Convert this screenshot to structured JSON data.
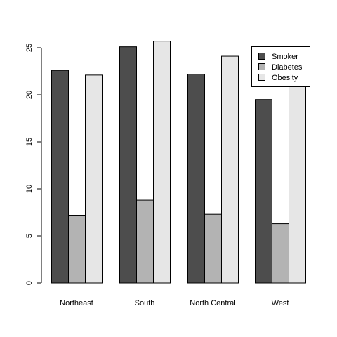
{
  "chart_data": {
    "type": "bar",
    "categories": [
      "Northeast",
      "South",
      "North Central",
      "West"
    ],
    "series": [
      {
        "name": "Smoker",
        "values": [
          22.6,
          25.1,
          22.2,
          19.5
        ],
        "color": "#4d4d4d"
      },
      {
        "name": "Diabetes",
        "values": [
          7.2,
          8.8,
          7.3,
          6.3
        ],
        "color": "#b3b3b3"
      },
      {
        "name": "Obesity",
        "values": [
          22.1,
          25.7,
          24.1,
          21.7
        ],
        "color": "#e6e6e6"
      }
    ],
    "y_ticks": [
      "0",
      "5",
      "10",
      "15",
      "20",
      "25"
    ],
    "ylim": [
      0,
      27
    ],
    "legend_position": "top-right",
    "grid": false,
    "bar_border_color": "#000000"
  }
}
